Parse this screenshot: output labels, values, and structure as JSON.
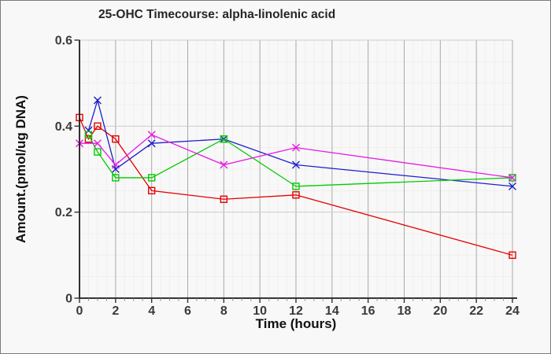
{
  "window": {
    "background_color": "#f8f8f8",
    "border_color": "#7b7b7b"
  },
  "chart_data": {
    "type": "line",
    "title": "25-OHC Timecourse: alpha-linolenic acid",
    "xlabel": "Time (hours)",
    "ylabel": "Amount.(pmol/ug DNA)",
    "xlim": [
      0,
      24
    ],
    "ylim": [
      0,
      0.6
    ],
    "x_major_ticks": [
      0,
      2,
      4,
      6,
      8,
      10,
      12,
      14,
      16,
      18,
      20,
      22,
      24
    ],
    "x_tick_labels": [
      "0",
      "2",
      "4",
      "6",
      "8",
      "10",
      "12",
      "14",
      "16",
      "18",
      "20",
      "22",
      "24"
    ],
    "x_minor_step": 0.5,
    "y_major_ticks": [
      0,
      0.2,
      0.4,
      0.6
    ],
    "y_tick_labels": [
      "0",
      "0.2",
      "0.4",
      "0.6"
    ],
    "y_minor_step": 0.05,
    "grid": "major and minor gridlines on",
    "legend_position": "none",
    "colors": {
      "axis": "#1a1a1a",
      "major_grid_vertical": "#a9a9a9",
      "major_grid_horizontal": "#cccccc",
      "minor_grid": "#efefef",
      "tick_label": "#3a3a3a"
    },
    "series": [
      {
        "name": "series-1-red",
        "color": "#e60000",
        "marker": "open-square",
        "x": [
          0,
          0.5,
          1,
          2,
          4,
          8,
          12,
          24
        ],
        "y": [
          0.42,
          0.37,
          0.4,
          0.37,
          0.25,
          0.23,
          0.24,
          0.1
        ]
      },
      {
        "name": "series-2-blue",
        "color": "#1d1dcc",
        "marker": "x-cross",
        "x": [
          0.5,
          1,
          2,
          4,
          8,
          12,
          24
        ],
        "y": [
          0.39,
          0.46,
          0.3,
          0.36,
          0.37,
          0.31,
          0.26
        ]
      },
      {
        "name": "series-3-green",
        "color": "#00cc00",
        "marker": "open-square",
        "x": [
          0.5,
          1,
          2,
          4,
          8,
          12,
          24
        ],
        "y": [
          0.38,
          0.34,
          0.28,
          0.28,
          0.37,
          0.26,
          0.28
        ]
      },
      {
        "name": "series-4-magenta",
        "color": "#e61ae6",
        "marker": "x-cross",
        "x": [
          0,
          1,
          2,
          4,
          8,
          12,
          24
        ],
        "y": [
          0.36,
          0.36,
          0.31,
          0.38,
          0.31,
          0.35,
          0.28
        ]
      }
    ]
  }
}
